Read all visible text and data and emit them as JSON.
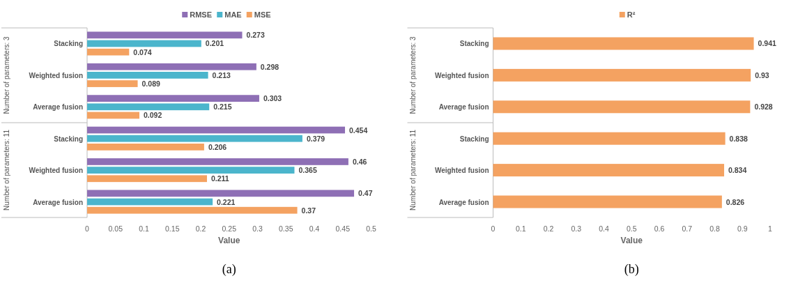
{
  "chart_data": [
    {
      "type": "bar",
      "orientation": "horizontal",
      "categories": [
        "Stacking",
        "Weighted fusion",
        "Average fusion",
        "Stacking",
        "Weighted fusion",
        "Average fusion"
      ],
      "series": [
        {
          "name": "RMSE",
          "color": "#8e6fb5",
          "values": [
            0.273,
            0.298,
            0.303,
            0.454,
            0.46,
            0.47
          ]
        },
        {
          "name": "MAE",
          "color": "#4bb5cc",
          "values": [
            0.201,
            0.213,
            0.215,
            0.379,
            0.365,
            0.221
          ]
        },
        {
          "name": "MSE",
          "color": "#f4a261",
          "values": [
            0.074,
            0.089,
            0.092,
            0.206,
            0.211,
            0.37
          ]
        }
      ],
      "xlim": [
        0,
        0.5
      ],
      "xticks": [
        0,
        0.05,
        0.1,
        0.15,
        0.2,
        0.25,
        0.3,
        0.35,
        0.4,
        0.45,
        0.5
      ],
      "xlabel": "Value",
      "data_labels": true,
      "legend": "top",
      "annotations": [
        "Number of parameters: 3",
        "Number of parameters: 11",
        "(a)"
      ]
    },
    {
      "type": "bar",
      "orientation": "horizontal",
      "categories": [
        "Stacking",
        "Weighted fusion",
        "Average fusion",
        "Stacking",
        "Weighted fusion",
        "Average fusion"
      ],
      "series": [
        {
          "name": "R²",
          "color": "#f4a261",
          "values": [
            0.941,
            0.93,
            0.928,
            0.838,
            0.834,
            0.826
          ]
        }
      ],
      "xlim": [
        0,
        1
      ],
      "xticks": [
        0,
        0.1,
        0.2,
        0.3,
        0.4,
        0.5,
        0.6,
        0.7,
        0.8,
        0.9,
        1
      ],
      "xlabel": "Value",
      "data_labels": true,
      "legend": "top",
      "annotations": [
        "Number of parameters: 3",
        "Number of parameters: 11",
        "(b)"
      ]
    }
  ]
}
